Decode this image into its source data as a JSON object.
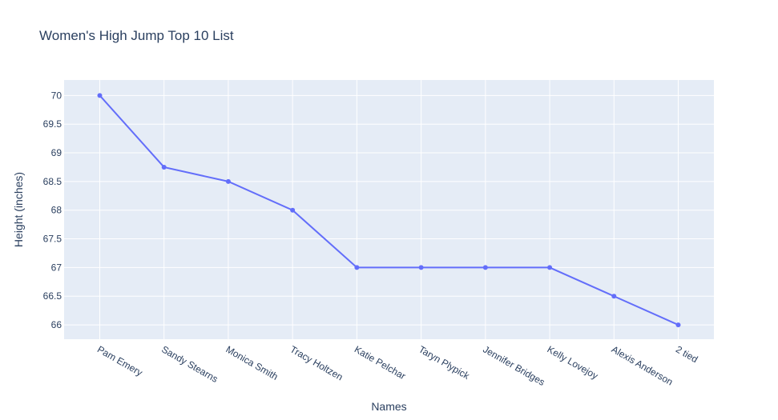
{
  "chart_data": {
    "type": "line",
    "title": "Women's High Jump Top 10 List",
    "xlabel": "Names",
    "ylabel": "Height (inches)",
    "categories": [
      "Pam Emery",
      "Sandy Stearns",
      "Monica Smith",
      "Tracy Holtzen",
      "Katie Pelchar",
      "Taryn Plypick",
      "Jennifer Bridges",
      "Kelly Lovejoy",
      "Alexis Anderson",
      "2 tied"
    ],
    "series": [
      {
        "values": [
          70,
          68.75,
          68.5,
          68,
          67,
          67,
          67,
          67,
          66.5,
          66
        ],
        "color": "#636efa"
      }
    ],
    "ylim": [
      65.75,
      70.27
    ],
    "yticks": [
      66,
      66.5,
      67,
      67.5,
      68,
      68.5,
      69,
      69.5,
      70
    ],
    "ytick_labels": [
      "66",
      "66.5",
      "67",
      "67.5",
      "68",
      "68.5",
      "69",
      "69.5",
      "70"
    ],
    "grid": true,
    "markers": true,
    "plot_background": "#e5ecf6",
    "grid_color": "#ffffff",
    "text_color": "#2a3f5f"
  }
}
